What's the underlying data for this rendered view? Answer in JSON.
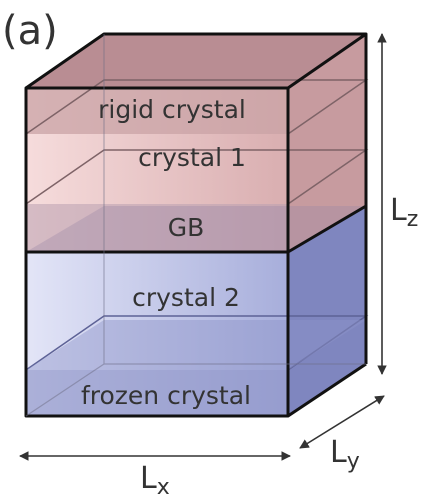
{
  "panel_label": "(a)",
  "layers": {
    "rigid": "rigid crystal",
    "crystal1": "crystal 1",
    "gb": "GB",
    "crystal2": "crystal 2",
    "frozen": "frozen crystal"
  },
  "axes": {
    "lx_main": "L",
    "lx_sub": "x",
    "ly_main": "L",
    "ly_sub": "y",
    "lz_main": "L",
    "lz_sub": "z"
  },
  "colors": {
    "top_tint": "#d9aeb0",
    "bottom_tint": "#a7aedb",
    "edge": "#111111"
  }
}
